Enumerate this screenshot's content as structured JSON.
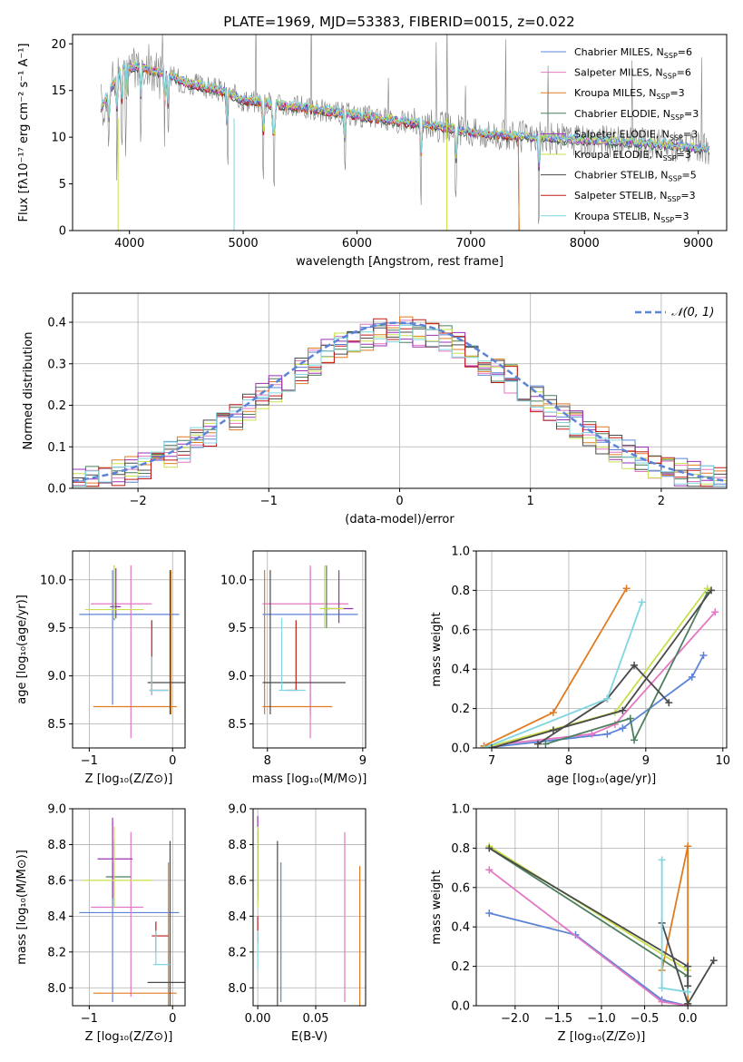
{
  "title": "PLATE=1969, MJD=53383, FIBERID=0015, z=0.022",
  "models": [
    {
      "name": "Chabrier MILES",
      "nssp": "6",
      "color": "#5b84d8"
    },
    {
      "name": "Salpeter MILES",
      "nssp": "6",
      "color": "#e377c2"
    },
    {
      "name": "Kroupa MILES",
      "nssp": "3",
      "color": "#e07b20"
    },
    {
      "name": "Chabrier ELODIE",
      "nssp": "3",
      "color": "#4d7f5f"
    },
    {
      "name": "Salpeter ELODIE",
      "nssp": "3",
      "color": "#9b30b5"
    },
    {
      "name": "Kroupa ELODIE",
      "nssp": "3",
      "color": "#c8e04a"
    },
    {
      "name": "Chabrier STELIB",
      "nssp": "5",
      "color": "#4a4a4a"
    },
    {
      "name": "Salpeter STELIB",
      "nssp": "3",
      "color": "#c01818"
    },
    {
      "name": "Kroupa STELIB",
      "nssp": "3",
      "color": "#7fd6e0"
    }
  ],
  "chart_data": [
    {
      "id": "spectrum",
      "type": "line",
      "xlabel": "wavelength [Angstrom, rest frame]",
      "ylabel": "Flux [fλ10⁻¹⁷ erg cm⁻² s⁻¹ A⁻¹]",
      "xlim": [
        3500,
        9250
      ],
      "ylim": [
        0,
        21
      ],
      "xticks": [
        "4000",
        "5000",
        "6000",
        "7000",
        "8000",
        "9000"
      ],
      "yticks": [
        "0",
        "5",
        "10",
        "15",
        "20"
      ],
      "data_color": "#808080",
      "continuum": [
        [
          3750,
          13
        ],
        [
          3850,
          15.5
        ],
        [
          3950,
          17.5
        ],
        [
          4100,
          17.5
        ],
        [
          4300,
          16.8
        ],
        [
          4500,
          15.8
        ],
        [
          4800,
          15
        ],
        [
          5000,
          14
        ],
        [
          5300,
          13.5
        ],
        [
          5600,
          13
        ],
        [
          5900,
          12.5
        ],
        [
          6200,
          12
        ],
        [
          6500,
          11.5
        ],
        [
          6800,
          11
        ],
        [
          7000,
          10.5
        ],
        [
          7200,
          10.3
        ],
        [
          7500,
          10
        ],
        [
          7800,
          9.8
        ],
        [
          8100,
          9.6
        ],
        [
          8400,
          9.4
        ],
        [
          8700,
          9.2
        ],
        [
          9000,
          8.8
        ],
        [
          9100,
          8.6
        ]
      ]
    },
    {
      "id": "residuals",
      "type": "line",
      "xlabel": "(data-model)/error",
      "ylabel": "Normed distribution",
      "xlim": [
        -2.5,
        2.5
      ],
      "ylim": [
        0,
        0.47
      ],
      "xticks": [
        "−2",
        "−1",
        "0",
        "1",
        "2"
      ],
      "yticks": [
        "0.0",
        "0.1",
        "0.2",
        "0.3",
        "0.4"
      ],
      "legend": "𝒩(0, 1)",
      "bin_width": 0.1
    },
    {
      "id": "age_vs_Z",
      "type": "scatter",
      "xlabel": "Z [log₁₀(Z/Z⊙)]",
      "ylabel": "age  [log₁₀(age/yr)]",
      "xlim": [
        -1.2,
        0.15
      ],
      "ylim": [
        8.25,
        10.3
      ],
      "xticks": [
        "−1",
        "0"
      ],
      "yticks": [
        "8.5",
        "9.0",
        "9.5",
        "10.0"
      ]
    },
    {
      "id": "age_vs_mass",
      "type": "scatter",
      "xlabel": "mass [log₁₀(M/M⊙)]",
      "ylabel": "",
      "xlim": [
        7.85,
        9.03
      ],
      "ylim": [
        8.25,
        10.3
      ],
      "xticks": [
        "8",
        "9"
      ],
      "yticks": [
        "8.5",
        "9.0",
        "9.5",
        "10.0"
      ]
    },
    {
      "id": "weight_vs_age",
      "type": "line",
      "xlabel": "age  [log₁₀(age/yr)]",
      "ylabel": "mass weight",
      "xlim": [
        6.8,
        10.05
      ],
      "ylim": [
        0,
        1.0
      ],
      "xticks": [
        "7",
        "8",
        "9",
        "10"
      ],
      "yticks": [
        "0.0",
        "0.2",
        "0.4",
        "0.6",
        "0.8",
        "1.0"
      ],
      "series": [
        {
          "model": 0,
          "x": [
            6.9,
            8.5,
            8.7,
            9.6,
            9.75
          ],
          "y": [
            0.0,
            0.07,
            0.1,
            0.36,
            0.47
          ]
        },
        {
          "model": 1,
          "x": [
            6.9,
            8.3,
            8.6,
            9.9
          ],
          "y": [
            0.01,
            0.07,
            0.12,
            0.69
          ]
        },
        {
          "model": 2,
          "x": [
            6.9,
            7.8,
            8.75
          ],
          "y": [
            0.01,
            0.18,
            0.81
          ]
        },
        {
          "model": 3,
          "x": [
            7.7,
            8.8,
            8.85,
            9.8
          ],
          "y": [
            0.02,
            0.15,
            0.04,
            0.79
          ]
        },
        {
          "model": 5,
          "x": [
            6.9,
            8.6,
            9.8
          ],
          "y": [
            0.0,
            0.18,
            0.81
          ]
        },
        {
          "model": 6,
          "x": [
            7.6,
            8.5,
            8.85,
            9.3
          ],
          "y": [
            0.02,
            0.25,
            0.42,
            0.23
          ]
        },
        {
          "model": 8,
          "x": [
            6.9,
            8.5,
            8.95
          ],
          "y": [
            0.0,
            0.25,
            0.74
          ]
        },
        {
          "model": 6,
          "x": [
            7.0,
            7.8,
            8.7,
            9.85
          ],
          "y": [
            0.0,
            0.09,
            0.19,
            0.8
          ]
        }
      ]
    },
    {
      "id": "mass_vs_Z",
      "type": "scatter",
      "xlabel": "Z [log₁₀(Z/Z⊙)]",
      "ylabel": "mass [log₁₀(M/M⊙)]",
      "xlim": [
        -1.2,
        0.15
      ],
      "ylim": [
        7.9,
        9.0
      ],
      "xticks": [
        "−1",
        "0"
      ],
      "yticks": [
        "8.0",
        "8.2",
        "8.4",
        "8.6",
        "8.8",
        "9.0"
      ]
    },
    {
      "id": "mass_vs_EBV",
      "type": "scatter",
      "xlabel": "E(B-V)",
      "ylabel": "",
      "xlim": [
        -0.004,
        0.093
      ],
      "ylim": [
        7.9,
        9.0
      ],
      "xticks": [
        "0.00",
        "0.05"
      ],
      "yticks": [
        "8.0",
        "8.2",
        "8.4",
        "8.6",
        "8.8",
        "9.0"
      ]
    },
    {
      "id": "weight_vs_Z",
      "type": "line",
      "xlabel": "Z [log₁₀(Z/Z⊙)]",
      "ylabel": "mass weight",
      "xlim": [
        -2.45,
        0.45
      ],
      "ylim": [
        0,
        1.0
      ],
      "xticks": [
        "−2.0",
        "−1.5",
        "−1.0",
        "−0.5",
        "0.0"
      ],
      "yticks": [
        "0.0",
        "0.2",
        "0.4",
        "0.6",
        "0.8",
        "1.0"
      ],
      "series": [
        {
          "model": 0,
          "x": [
            -2.3,
            -1.3,
            -0.3,
            0.0
          ],
          "y": [
            0.47,
            0.36,
            0.03,
            0.0
          ]
        },
        {
          "model": 1,
          "x": [
            -2.3,
            -0.3,
            0.0
          ],
          "y": [
            0.69,
            0.02,
            0.0
          ]
        },
        {
          "model": 2,
          "x": [
            -0.3,
            0.0,
            0.0
          ],
          "y": [
            0.18,
            0.81,
            0.01
          ]
        },
        {
          "model": 3,
          "x": [
            -2.3,
            0.0
          ],
          "y": [
            0.8,
            0.15
          ]
        },
        {
          "model": 5,
          "x": [
            -2.3,
            0.0
          ],
          "y": [
            0.81,
            0.18
          ]
        },
        {
          "model": 6,
          "x": [
            -2.3,
            0.0,
            0.0
          ],
          "y": [
            0.8,
            0.2,
            0.1
          ]
        },
        {
          "model": 6,
          "x": [
            -0.3,
            0.0,
            0.3
          ],
          "y": [
            0.42,
            0.01,
            0.23
          ]
        },
        {
          "model": 8,
          "x": [
            -0.3,
            -0.3,
            0.0
          ],
          "y": [
            0.74,
            0.09,
            0.07
          ]
        }
      ]
    }
  ]
}
